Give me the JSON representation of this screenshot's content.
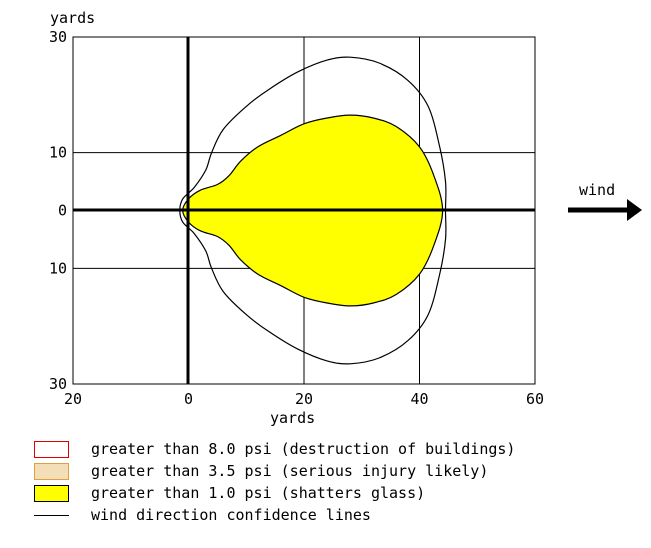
{
  "chart_data": {
    "type": "area",
    "xlabel": "yards",
    "ylabel": "yards",
    "xlim": [
      -20,
      60
    ],
    "ylim": [
      -30,
      30
    ],
    "x_ticks": [
      -20,
      0,
      20,
      40,
      60
    ],
    "x_tick_labels": [
      "20",
      "0",
      "20",
      "40",
      "60"
    ],
    "y_ticks": [
      30,
      10,
      0,
      -10,
      -30
    ],
    "y_tick_labels": [
      "30",
      "10",
      "0",
      "10",
      "30"
    ],
    "grid": true,
    "wind_label": "wind",
    "series": [
      {
        "legend_label": "greater than 8.0 psi (destruction of buildings)",
        "fill": "#ffffff",
        "stroke": "#e00000",
        "points": []
      },
      {
        "legend_label": "greater than 3.5 psi (serious injury likely)",
        "fill": "#f2dfb8",
        "stroke": "#e0a040",
        "points": []
      },
      {
        "legend_label": "greater than 1.0 psi (shatters glass)",
        "fill": "#ffff00",
        "stroke": "#000000",
        "points": [
          [
            -1,
            0
          ],
          [
            0,
            2
          ],
          [
            2,
            3.5
          ],
          [
            5,
            4.5
          ],
          [
            7,
            6
          ],
          [
            9,
            8.5
          ],
          [
            12,
            11
          ],
          [
            16,
            13
          ],
          [
            20,
            15
          ],
          [
            24,
            16
          ],
          [
            28,
            16.5
          ],
          [
            32,
            16
          ],
          [
            36,
            14.5
          ],
          [
            40,
            11
          ],
          [
            42.5,
            6
          ],
          [
            44,
            0
          ],
          [
            42.5,
            -6
          ],
          [
            40,
            -11
          ],
          [
            36,
            -14.5
          ],
          [
            32,
            -16
          ],
          [
            28,
            -16.5
          ],
          [
            24,
            -16
          ],
          [
            20,
            -15
          ],
          [
            16,
            -13
          ],
          [
            12,
            -11
          ],
          [
            9,
            -8.5
          ],
          [
            7,
            -6
          ],
          [
            5,
            -4.5
          ],
          [
            2,
            -3.5
          ],
          [
            0,
            -2
          ]
        ]
      },
      {
        "legend_label": "wind direction confidence lines",
        "fill": "none",
        "stroke": "#000000",
        "points": [
          [
            -1.5,
            0
          ],
          [
            -1,
            2
          ],
          [
            1,
            4
          ],
          [
            3,
            7
          ],
          [
            4,
            10
          ],
          [
            6,
            14
          ],
          [
            10,
            18
          ],
          [
            14,
            21
          ],
          [
            19,
            24
          ],
          [
            24,
            26
          ],
          [
            28,
            26.5
          ],
          [
            33,
            25.5
          ],
          [
            38,
            22.5
          ],
          [
            41.5,
            18
          ],
          [
            43.5,
            11
          ],
          [
            44.5,
            5
          ],
          [
            44.5,
            0
          ],
          [
            44.5,
            -5
          ],
          [
            43.5,
            -11
          ],
          [
            41.5,
            -18
          ],
          [
            38,
            -22.5
          ],
          [
            33,
            -25.5
          ],
          [
            28,
            -26.5
          ],
          [
            24,
            -26
          ],
          [
            19,
            -24
          ],
          [
            14,
            -21
          ],
          [
            10,
            -18
          ],
          [
            6,
            -14
          ],
          [
            4,
            -10
          ],
          [
            3,
            -7
          ],
          [
            1,
            -4
          ],
          [
            -1,
            -2
          ]
        ]
      }
    ]
  }
}
